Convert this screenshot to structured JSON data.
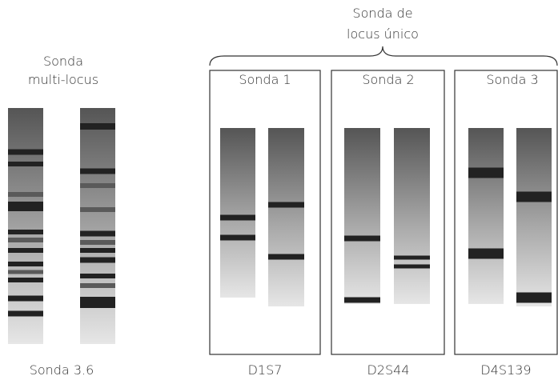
{
  "multi_locus": {
    "label": [
      "Sonda",
      "multi-locus"
    ],
    "caption": "Sonda 3.6"
  },
  "single_locus": {
    "label": [
      "Sonda de",
      "locus único"
    ],
    "probes": [
      {
        "title": "Sonda 1",
        "locus": "D1S7"
      },
      {
        "title": "Sonda 2",
        "locus": "D2S44"
      },
      {
        "title": "Sonda 3",
        "locus": "D4S139"
      }
    ]
  }
}
